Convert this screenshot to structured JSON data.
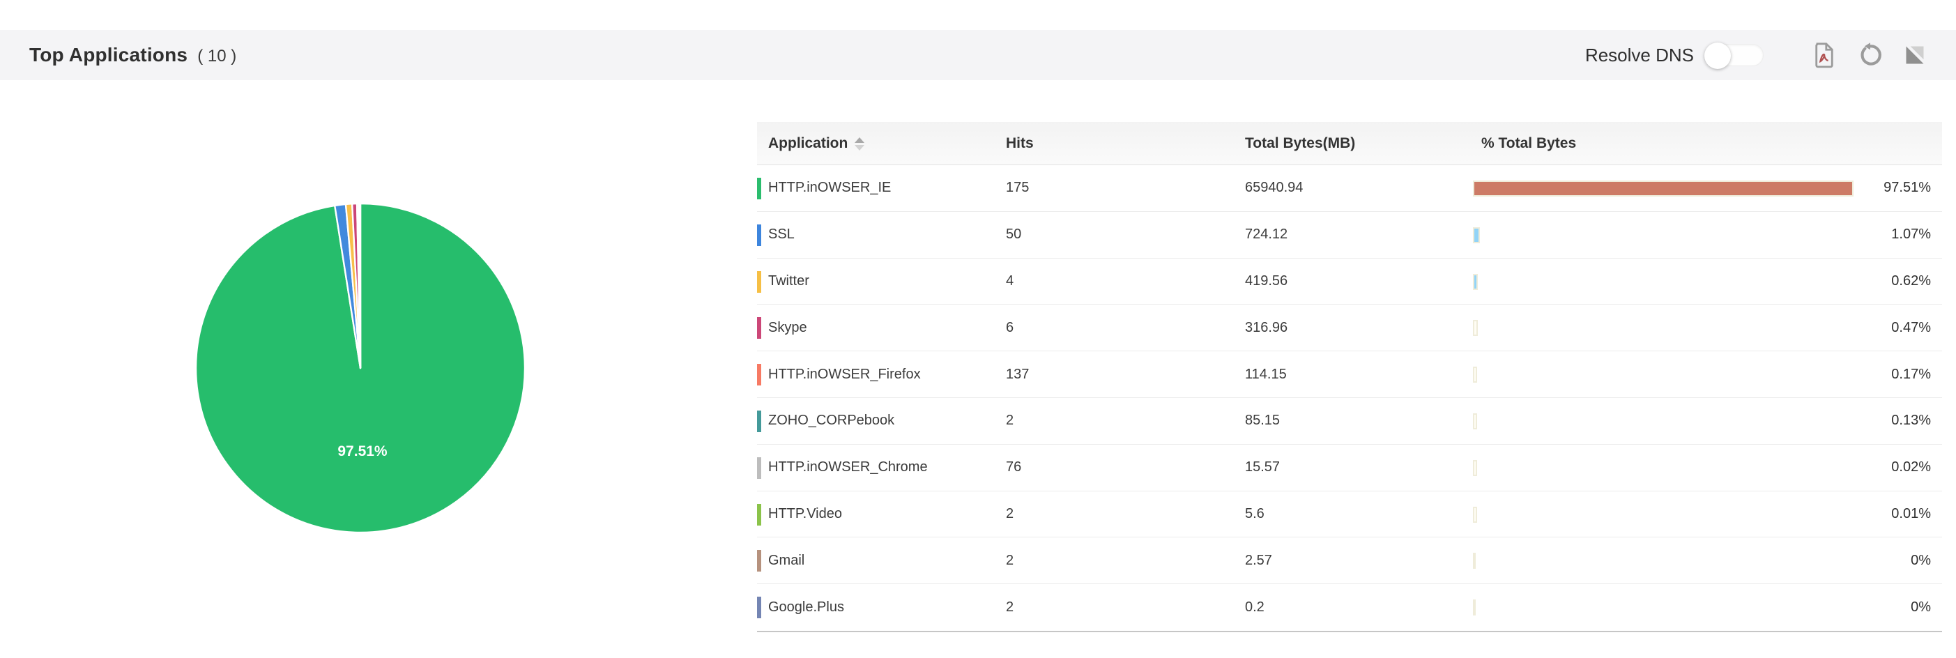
{
  "header": {
    "title": "Top Applications",
    "count": "( 10 )",
    "resolve_dns_label": "Resolve DNS",
    "toggle_state": "off",
    "icons": [
      "pdf-export-icon",
      "refresh-icon",
      "expand-icon"
    ],
    "icon_color": "#9b9b9b",
    "bar_background": "#f4f4f6"
  },
  "table": {
    "columns": [
      "Application",
      "Hits",
      "Total Bytes(MB)",
      "% Total Bytes"
    ],
    "rows": [
      {
        "application": "HTTP.inOWSER_IE",
        "hits": "175",
        "total_bytes": "65940.94",
        "pct": "97.51%",
        "pct_value": 97.51,
        "strip_color": "#2bbd6e",
        "bar_color": "#cd7b66"
      },
      {
        "application": "SSL",
        "hits": "50",
        "total_bytes": "724.12",
        "pct": "1.07%",
        "pct_value": 1.07,
        "strip_color": "#3d85dd",
        "bar_color": "#92d4f7"
      },
      {
        "application": "Twitter",
        "hits": "4",
        "total_bytes": "419.56",
        "pct": "0.62%",
        "pct_value": 0.62,
        "strip_color": "#f6bf45",
        "bar_color": "#92d4f7"
      },
      {
        "application": "Skype",
        "hits": "6",
        "total_bytes": "316.96",
        "pct": "0.47%",
        "pct_value": 0.47,
        "strip_color": "#cc4778",
        "bar_color": "#fffdf4"
      },
      {
        "application": "HTTP.inOWSER_Firefox",
        "hits": "137",
        "total_bytes": "114.15",
        "pct": "0.17%",
        "pct_value": 0.17,
        "strip_color": "#f77a64",
        "bar_color": "#fffdf4"
      },
      {
        "application": "ZOHO_CORPebook",
        "hits": "2",
        "total_bytes": "85.15",
        "pct": "0.13%",
        "pct_value": 0.13,
        "strip_color": "#449a9a",
        "bar_color": "#fffdf4"
      },
      {
        "application": "HTTP.inOWSER_Chrome",
        "hits": "76",
        "total_bytes": "15.57",
        "pct": "0.02%",
        "pct_value": 0.02,
        "strip_color": "#bdbdbd",
        "bar_color": "#fffdf4"
      },
      {
        "application": "HTTP.Video",
        "hits": "2",
        "total_bytes": "5.6",
        "pct": "0.01%",
        "pct_value": 0.01,
        "strip_color": "#8bc34a",
        "bar_color": "#fffdf4"
      },
      {
        "application": "Gmail",
        "hits": "2",
        "total_bytes": "2.57",
        "pct": "0%",
        "pct_value": 0,
        "strip_color": "#b6927e",
        "bar_color": "#fffdf4"
      },
      {
        "application": "Google.Plus",
        "hits": "2",
        "total_bytes": "0.2",
        "pct": "0%",
        "pct_value": 0,
        "strip_color": "#7485b3",
        "bar_color": "#fffdf4"
      }
    ]
  },
  "chart_data": {
    "type": "pie",
    "title": "Top Applications ( 10 )",
    "labels": [
      "HTTP.inOWSER_IE",
      "SSL",
      "Twitter",
      "Skype",
      "HTTP.inOWSER_Firefox",
      "ZOHO_CORPebook",
      "HTTP.inOWSER_Chrome",
      "HTTP.Video",
      "Gmail",
      "Google.Plus"
    ],
    "values": [
      97.51,
      1.07,
      0.62,
      0.47,
      0.17,
      0.13,
      0.02,
      0.01,
      0,
      0
    ],
    "colors": [
      "#26bd6c",
      "#4189dd",
      "#f8bf4a",
      "#cb4577",
      "#f47b64",
      "#449a9a",
      "#bdbdbd",
      "#8bc34a",
      "#b6927e",
      "#7485b3"
    ],
    "units": "% of total bytes",
    "start_angle_deg": 0,
    "direction": "clockwise",
    "legend_position": "none",
    "center_label": "97.51%",
    "center_label_color": "#ffffff"
  }
}
